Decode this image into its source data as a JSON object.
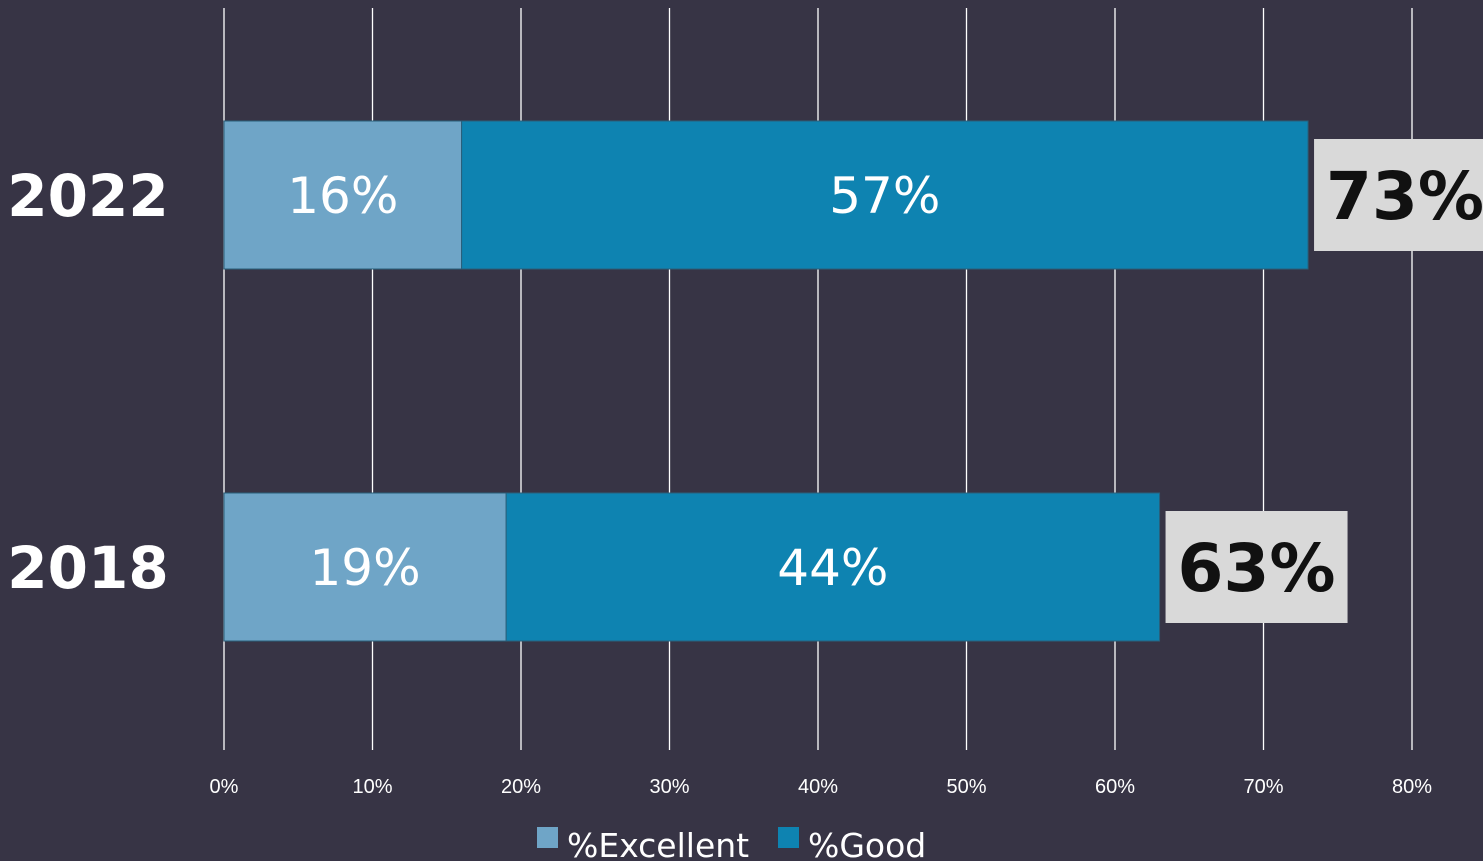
{
  "chart_data": {
    "type": "bar",
    "orientation": "horizontal",
    "stacked": true,
    "categories": [
      "2022",
      "2018"
    ],
    "series": [
      {
        "name": "%Excellent",
        "values": [
          16,
          19
        ],
        "labels": [
          "16%",
          "19%"
        ]
      },
      {
        "name": "%Good",
        "values": [
          57,
          44
        ],
        "labels": [
          "57%",
          "44%"
        ]
      }
    ],
    "totals": [
      73,
      63
    ],
    "total_labels": [
      "73%",
      "63%"
    ],
    "xlim": [
      0,
      80
    ],
    "x_ticks": [
      0,
      10,
      20,
      30,
      40,
      50,
      60,
      70,
      80
    ],
    "x_tick_labels": [
      "0%",
      "10%",
      "20%",
      "30%",
      "40%",
      "50%",
      "60%",
      "70%",
      "80%"
    ],
    "grid": "vertical",
    "legend_position": "bottom",
    "colors": {
      "background": "#373445",
      "excellent": "#6fa5c7",
      "good": "#0e83b1",
      "total_box": "#d9d9d9",
      "grid": "#ffffff"
    }
  }
}
